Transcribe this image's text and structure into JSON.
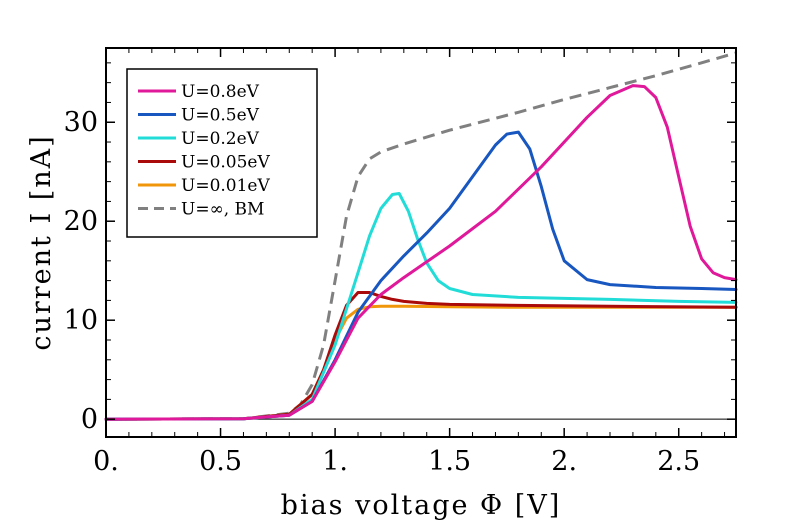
{
  "chart_data": {
    "type": "line",
    "xlabel": "bias voltage Φ [V]",
    "ylabel": "current I [nA]",
    "xlim": [
      0,
      2.75
    ],
    "ylim": [
      -1.8,
      37.5
    ],
    "xticks": [
      0,
      0.5,
      1,
      1.5,
      2,
      2.5
    ],
    "xtick_labels": [
      "0.",
      "0.5",
      "1.",
      "1.5",
      "2.",
      "2.5"
    ],
    "yticks": [
      0,
      10,
      20,
      30
    ],
    "ytick_labels": [
      "0",
      "10",
      "20",
      "30"
    ],
    "grid": false,
    "legend": "top-left",
    "series": [
      {
        "name": "U=0.8eV",
        "color": "#e0189a",
        "dash": false,
        "x": [
          0,
          0.6,
          0.8,
          0.9,
          1.0,
          1.1,
          1.2,
          1.3,
          1.5,
          1.7,
          1.9,
          2.1,
          2.2,
          2.3,
          2.35,
          2.4,
          2.45,
          2.5,
          2.55,
          2.6,
          2.65,
          2.7,
          2.75
        ],
        "y": [
          0,
          0.05,
          0.4,
          1.8,
          5.8,
          10.2,
          12.6,
          14.3,
          17.5,
          21.0,
          25.5,
          30.5,
          32.7,
          33.7,
          33.6,
          32.5,
          29.5,
          24.5,
          19.5,
          16.2,
          14.8,
          14.3,
          14.1
        ]
      },
      {
        "name": "U=0.5eV",
        "color": "#1856c0",
        "dash": false,
        "x": [
          0,
          0.6,
          0.8,
          0.9,
          1.0,
          1.1,
          1.2,
          1.3,
          1.4,
          1.5,
          1.6,
          1.7,
          1.75,
          1.8,
          1.85,
          1.9,
          1.95,
          2.0,
          2.1,
          2.2,
          2.4,
          2.6,
          2.75
        ],
        "y": [
          0,
          0.05,
          0.4,
          1.8,
          6.0,
          10.8,
          14.0,
          16.5,
          18.8,
          21.3,
          24.5,
          27.7,
          28.8,
          29.0,
          27.3,
          23.5,
          19.2,
          16.0,
          14.1,
          13.6,
          13.3,
          13.2,
          13.1
        ]
      },
      {
        "name": "U=0.2eV",
        "color": "#22dcd8",
        "dash": false,
        "x": [
          0,
          0.6,
          0.8,
          0.9,
          1.0,
          1.1,
          1.15,
          1.2,
          1.25,
          1.28,
          1.32,
          1.36,
          1.4,
          1.45,
          1.5,
          1.6,
          1.8,
          2.0,
          2.2,
          2.5,
          2.75
        ],
        "y": [
          0,
          0.05,
          0.4,
          2.0,
          7.5,
          14.8,
          18.5,
          21.3,
          22.7,
          22.8,
          21.0,
          18.2,
          15.8,
          14.0,
          13.2,
          12.6,
          12.3,
          12.2,
          12.1,
          11.9,
          11.8
        ]
      },
      {
        "name": "U=0.05eV",
        "color": "#aa0a0a",
        "dash": false,
        "x": [
          0,
          0.6,
          0.8,
          0.9,
          0.95,
          1.0,
          1.05,
          1.1,
          1.15,
          1.2,
          1.25,
          1.3,
          1.4,
          1.5,
          1.8,
          2.2,
          2.75
        ],
        "y": [
          0,
          0.05,
          0.5,
          2.5,
          5.0,
          8.5,
          11.5,
          12.8,
          12.8,
          12.4,
          12.1,
          11.9,
          11.7,
          11.6,
          11.5,
          11.4,
          11.3
        ]
      },
      {
        "name": "U=0.01eV",
        "color": "#f0960a",
        "dash": false,
        "x": [
          0,
          0.6,
          0.8,
          0.9,
          0.95,
          1.0,
          1.05,
          1.1,
          1.15,
          1.2,
          1.3,
          1.5,
          1.8,
          2.2,
          2.75
        ],
        "y": [
          0,
          0.05,
          0.5,
          2.5,
          5.0,
          8.0,
          10.2,
          11.1,
          11.35,
          11.4,
          11.4,
          11.35,
          11.3,
          11.3,
          11.3
        ]
      },
      {
        "name": "U=∞, BM",
        "color": "#808080",
        "dash": true,
        "x": [
          0,
          0.6,
          0.8,
          0.85,
          0.9,
          0.95,
          1.0,
          1.05,
          1.1,
          1.15,
          1.2,
          1.3,
          1.5,
          1.8,
          2.0,
          2.2,
          2.4,
          2.6,
          2.75
        ],
        "y": [
          0,
          0.05,
          0.6,
          1.5,
          3.5,
          7.5,
          14.0,
          20.5,
          24.5,
          26.3,
          27.0,
          27.8,
          29.2,
          31.0,
          32.3,
          33.5,
          34.7,
          36.0,
          37.0
        ]
      }
    ]
  }
}
